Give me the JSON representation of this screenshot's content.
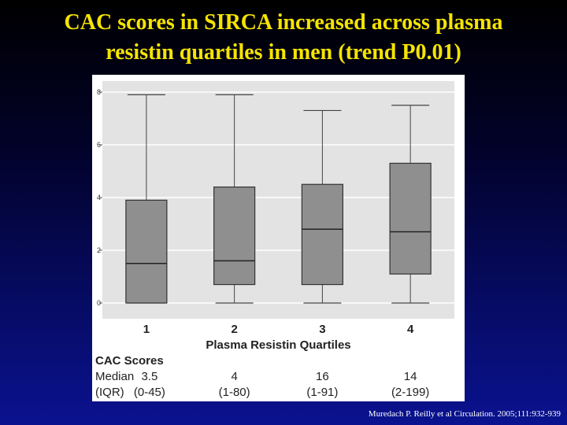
{
  "title_line1": "CAC scores in SIRCA increased across plasma",
  "title_line2": "resistin quartiles in men (trend P0.01)",
  "citation": "Muredach P. Reilly et al Circulation. 2005;111:932-939",
  "colors": {
    "title": "#f5e400",
    "plot_bg": "#e3e3e3",
    "box_fill": "#8f8f8f",
    "background_top": "#000000",
    "background_bottom": "#0a1290"
  },
  "chart_data": {
    "type": "box",
    "title": "",
    "xlabel": "Plasma Resistin Quartiles",
    "ylabel": "",
    "ylim": [
      0,
      8
    ],
    "yticks": [
      "0",
      "2",
      "4",
      "6",
      "8"
    ],
    "grid": true,
    "categories": [
      "1",
      "2",
      "3",
      "4"
    ],
    "boxes": [
      {
        "category": "1",
        "min": 0,
        "q1": 0,
        "median": 1.5,
        "q3": 3.9,
        "max": 7.9
      },
      {
        "category": "2",
        "min": 0,
        "q1": 0.7,
        "median": 1.6,
        "q3": 4.4,
        "max": 7.9
      },
      {
        "category": "3",
        "min": 0,
        "q1": 0.7,
        "median": 2.8,
        "q3": 4.5,
        "max": 7.3
      },
      {
        "category": "4",
        "min": 0,
        "q1": 1.1,
        "median": 2.7,
        "q3": 5.3,
        "max": 7.5
      }
    ],
    "table": {
      "heading": "CAC Scores",
      "row1_label": "Median",
      "row2_label": "(IQR)",
      "medians": [
        "3.5",
        "4",
        "16",
        "14"
      ],
      "iqrs": [
        "(0-45)",
        "(1-80)",
        "(1-91)",
        "(2-199)"
      ]
    }
  }
}
